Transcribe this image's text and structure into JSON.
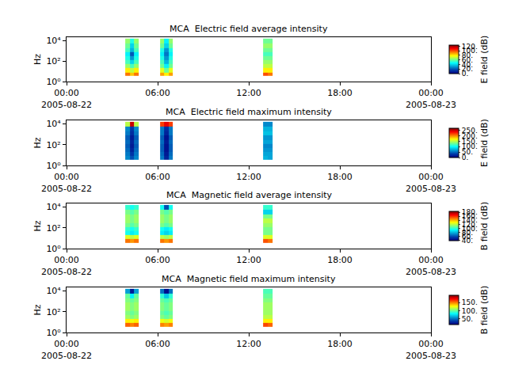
{
  "chart_data": [
    {
      "type": "heatmap",
      "title": "MCA  Electric field average intensity",
      "y_label": "Hz",
      "log": "y",
      "x": [
        "2005-08-22 03:52",
        "2005-08-22 04:10",
        "2005-08-22 04:27",
        "2005-08-22 04:45",
        "2005-08-22 06:09",
        "2005-08-22 06:26",
        "2005-08-22 06:43",
        "2005-08-22 07:00",
        "2005-08-22 12:56",
        "2005-08-22 13:15",
        "2005-08-22 13:34"
      ],
      "y": [
        3.5,
        8,
        20,
        50,
        120,
        300,
        800,
        2000,
        6000,
        16000
      ],
      "z": [
        [
          95,
          85,
          95,
          null,
          90,
          80,
          90,
          null,
          100,
          95
        ],
        [
          80,
          70,
          80,
          null,
          75,
          60,
          75,
          null,
          80,
          80
        ],
        [
          65,
          55,
          65,
          null,
          60,
          45,
          60,
          null,
          70,
          70
        ],
        [
          55,
          40,
          55,
          null,
          55,
          35,
          55,
          null,
          65,
          65
        ],
        [
          50,
          30,
          50,
          null,
          50,
          30,
          50,
          null,
          60,
          60
        ],
        [
          45,
          20,
          45,
          null,
          45,
          25,
          45,
          null,
          55,
          55
        ],
        [
          55,
          35,
          55,
          null,
          50,
          30,
          50,
          null,
          60,
          60
        ],
        [
          60,
          40,
          60,
          null,
          60,
          40,
          60,
          null,
          65,
          65
        ],
        [
          65,
          50,
          65,
          null,
          65,
          45,
          65,
          null,
          60,
          60
        ]
      ],
      "xlim": [
        "2005-08-22 00:00",
        "2005-08-23 00:00"
      ],
      "xticks": [
        {
          "value": "2005-08-22 00:00",
          "label": "00:00\n2005-08-22"
        },
        {
          "value": "2005-08-22 06:00",
          "label": "06:00"
        },
        {
          "value": "2005-08-22 12:00",
          "label": "12:00"
        },
        {
          "value": "2005-08-22 18:00",
          "label": "18:00"
        },
        {
          "value": "2005-08-23 00:00",
          "label": "00:00\n2005-08-23"
        }
      ],
      "ylim": [
        1,
        22000
      ],
      "yticks": [
        {
          "value": 1,
          "label": "10⁰"
        },
        {
          "value": 100,
          "label": "10²"
        },
        {
          "value": 10000,
          "label": "10⁴"
        }
      ],
      "colorbar_title": "E field (dB)",
      "zlim": [
        0,
        125
      ],
      "zticks": [
        {
          "value": 0,
          "label": "0."
        },
        {
          "value": 20,
          "label": "20."
        },
        {
          "value": 40,
          "label": "40."
        },
        {
          "value": 60,
          "label": "60."
        },
        {
          "value": 80,
          "label": "80."
        },
        {
          "value": 100,
          "label": "100."
        },
        {
          "value": 120,
          "label": "120."
        }
      ]
    },
    {
      "type": "heatmap",
      "title": "MCA  Electric field maximum intensity",
      "y_label": "Hz",
      "log": "y",
      "x": [
        "2005-08-22 03:52",
        "2005-08-22 04:10",
        "2005-08-22 04:27",
        "2005-08-22 04:45",
        "2005-08-22 06:09",
        "2005-08-22 06:26",
        "2005-08-22 06:43",
        "2005-08-22 07:00",
        "2005-08-22 12:56",
        "2005-08-22 13:15",
        "2005-08-22 13:34"
      ],
      "y": [
        3.5,
        8,
        20,
        50,
        120,
        300,
        800,
        2000,
        6000,
        16000
      ],
      "z": [
        [
          60,
          40,
          60,
          null,
          55,
          20,
          55,
          null,
          75,
          70
        ],
        [
          55,
          30,
          55,
          null,
          50,
          15,
          50,
          null,
          70,
          70
        ],
        [
          50,
          20,
          50,
          null,
          45,
          10,
          45,
          null,
          65,
          65
        ],
        [
          45,
          15,
          45,
          null,
          45,
          10,
          45,
          null,
          60,
          60
        ],
        [
          50,
          20,
          50,
          null,
          50,
          15,
          50,
          null,
          70,
          70
        ],
        [
          45,
          15,
          45,
          null,
          45,
          10,
          45,
          null,
          65,
          65
        ],
        [
          55,
          25,
          55,
          null,
          55,
          20,
          55,
          null,
          80,
          80
        ],
        [
          60,
          30,
          60,
          null,
          55,
          25,
          55,
          null,
          75,
          75
        ],
        [
          150,
          250,
          150,
          null,
          220,
          240,
          220,
          null,
          60,
          60
        ]
      ],
      "xlim": [
        "2005-08-22 00:00",
        "2005-08-23 00:00"
      ],
      "xticks": [
        {
          "value": "2005-08-22 00:00",
          "label": "00:00\n2005-08-22"
        },
        {
          "value": "2005-08-22 06:00",
          "label": "06:00"
        },
        {
          "value": "2005-08-22 12:00",
          "label": "12:00"
        },
        {
          "value": "2005-08-22 18:00",
          "label": "18:00"
        },
        {
          "value": "2005-08-23 00:00",
          "label": "00:00\n2005-08-23"
        }
      ],
      "ylim": [
        1,
        22000
      ],
      "yticks": [
        {
          "value": 1,
          "label": "10⁰"
        },
        {
          "value": 100,
          "label": "10²"
        },
        {
          "value": 10000,
          "label": "10⁴"
        }
      ],
      "colorbar_title": "E field (dB)",
      "zlim": [
        0,
        270
      ],
      "zticks": [
        {
          "value": 0,
          "label": "0."
        },
        {
          "value": 50,
          "label": "50."
        },
        {
          "value": 100,
          "label": "100."
        },
        {
          "value": 150,
          "label": "150."
        },
        {
          "value": 200,
          "label": "200."
        },
        {
          "value": 250,
          "label": "250."
        }
      ]
    },
    {
      "type": "heatmap",
      "title": "MCA  Magnetic field average intensity",
      "y_label": "Hz",
      "log": "y",
      "x": [
        "2005-08-22 03:52",
        "2005-08-22 04:10",
        "2005-08-22 04:27",
        "2005-08-22 04:45",
        "2005-08-22 06:09",
        "2005-08-22 06:26",
        "2005-08-22 06:43",
        "2005-08-22 07:00",
        "2005-08-22 12:56",
        "2005-08-22 13:15",
        "2005-08-22 13:34"
      ],
      "y": [
        3.5,
        8,
        20,
        50,
        120,
        300,
        800,
        2000,
        6000,
        16000
      ],
      "z": [
        [
          150,
          145,
          150,
          null,
          150,
          145,
          150,
          null,
          155,
          150
        ],
        [
          125,
          120,
          125,
          null,
          120,
          115,
          120,
          null,
          125,
          125
        ],
        [
          95,
          90,
          95,
          null,
          90,
          85,
          90,
          null,
          110,
          110
        ],
        [
          100,
          95,
          100,
          null,
          95,
          90,
          95,
          null,
          110,
          110
        ],
        [
          110,
          105,
          110,
          null,
          110,
          105,
          110,
          null,
          115,
          115
        ],
        [
          115,
          110,
          115,
          null,
          115,
          110,
          115,
          null,
          120,
          120
        ],
        [
          115,
          110,
          115,
          null,
          115,
          110,
          115,
          null,
          110,
          110
        ],
        [
          110,
          105,
          110,
          null,
          110,
          105,
          110,
          null,
          85,
          85
        ],
        [
          100,
          95,
          100,
          null,
          95,
          60,
          95,
          null,
          100,
          100
        ]
      ],
      "xlim": [
        "2005-08-22 00:00",
        "2005-08-23 00:00"
      ],
      "xticks": [
        {
          "value": "2005-08-22 00:00",
          "label": "00:00\n2005-08-22"
        },
        {
          "value": "2005-08-22 06:00",
          "label": "06:00"
        },
        {
          "value": "2005-08-22 12:00",
          "label": "12:00"
        },
        {
          "value": "2005-08-22 18:00",
          "label": "18:00"
        },
        {
          "value": "2005-08-23 00:00",
          "label": "00:00\n2005-08-23"
        }
      ],
      "ylim": [
        1,
        22000
      ],
      "yticks": [
        {
          "value": 1,
          "label": "10⁰"
        },
        {
          "value": 100,
          "label": "10²"
        },
        {
          "value": 10000,
          "label": "10⁴"
        }
      ],
      "colorbar_title": "B field (dB)",
      "zlim": [
        38,
        185
      ],
      "zticks": [
        {
          "value": 40,
          "label": "40."
        },
        {
          "value": 60,
          "label": "60."
        },
        {
          "value": 80,
          "label": "80."
        },
        {
          "value": 100,
          "label": "100."
        },
        {
          "value": 120,
          "label": "120."
        },
        {
          "value": 140,
          "label": "140."
        },
        {
          "value": 160,
          "label": "160."
        },
        {
          "value": 180,
          "label": "180."
        }
      ]
    },
    {
      "type": "heatmap",
      "title": "MCA  Magnetic field maximum intensity",
      "y_label": "Hz",
      "log": "y",
      "x": [
        "2005-08-22 03:52",
        "2005-08-22 04:10",
        "2005-08-22 04:27",
        "2005-08-22 04:45",
        "2005-08-22 06:09",
        "2005-08-22 06:26",
        "2005-08-22 06:43",
        "2005-08-22 07:00",
        "2005-08-22 12:56",
        "2005-08-22 13:15",
        "2005-08-22 13:34"
      ],
      "y": [
        3.5,
        8,
        20,
        50,
        120,
        300,
        800,
        2000,
        6000,
        16000
      ],
      "z": [
        [
          155,
          150,
          155,
          null,
          150,
          145,
          150,
          null,
          160,
          155
        ],
        [
          130,
          125,
          130,
          null,
          125,
          120,
          125,
          null,
          130,
          130
        ],
        [
          110,
          105,
          110,
          null,
          105,
          100,
          105,
          null,
          115,
          115
        ],
        [
          105,
          100,
          105,
          null,
          100,
          95,
          100,
          null,
          110,
          110
        ],
        [
          110,
          105,
          110,
          null,
          105,
          100,
          105,
          null,
          110,
          110
        ],
        [
          110,
          105,
          110,
          null,
          105,
          100,
          105,
          null,
          110,
          110
        ],
        [
          105,
          100,
          105,
          null,
          100,
          95,
          100,
          null,
          105,
          105
        ],
        [
          100,
          80,
          100,
          null,
          90,
          70,
          90,
          null,
          100,
          100
        ],
        [
          60,
          25,
          60,
          null,
          50,
          20,
          50,
          null,
          95,
          95
        ]
      ],
      "xlim": [
        "2005-08-22 00:00",
        "2005-08-23 00:00"
      ],
      "xticks": [
        {
          "value": "2005-08-22 00:00",
          "label": "00:00\n2005-08-22"
        },
        {
          "value": "2005-08-22 06:00",
          "label": "06:00"
        },
        {
          "value": "2005-08-22 12:00",
          "label": "12:00"
        },
        {
          "value": "2005-08-22 18:00",
          "label": "18:00"
        },
        {
          "value": "2005-08-23 00:00",
          "label": "00:00\n2005-08-23"
        }
      ],
      "ylim": [
        1,
        22000
      ],
      "yticks": [
        {
          "value": 1,
          "label": "10⁰"
        },
        {
          "value": 100,
          "label": "10²"
        },
        {
          "value": 10000,
          "label": "10⁴"
        }
      ],
      "colorbar_title": "B field (dB)",
      "zlim": [
        15,
        195
      ],
      "zticks": [
        {
          "value": 50,
          "label": "50."
        },
        {
          "value": 100,
          "label": "100."
        },
        {
          "value": 150,
          "label": "150."
        }
      ]
    }
  ]
}
